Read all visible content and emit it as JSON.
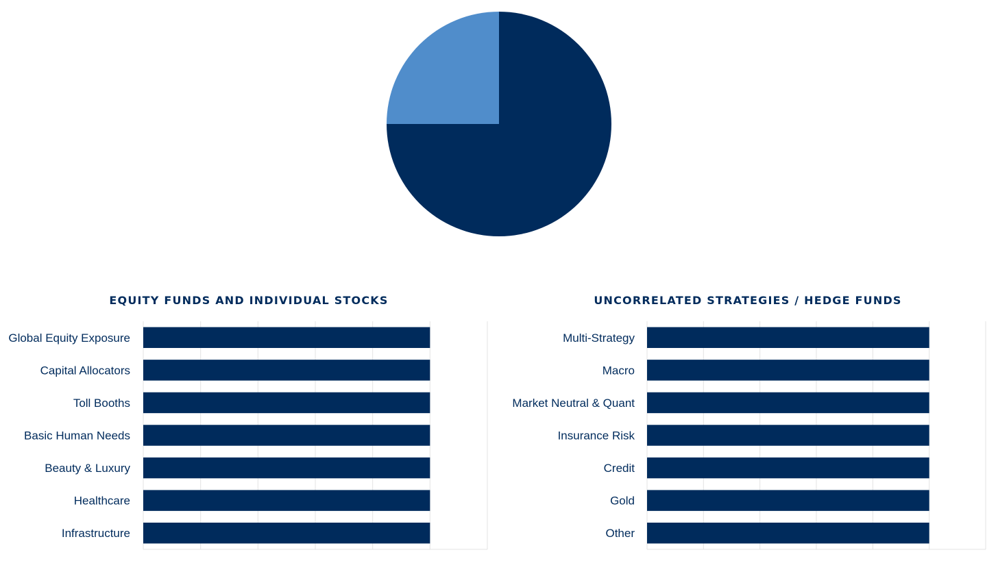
{
  "colors": {
    "dark": "#002B5C",
    "light": "#508DCB",
    "grid": "#E3E3E3",
    "text": "#002B5C"
  },
  "chart_data": [
    {
      "type": "pie",
      "title": "",
      "slices": [
        {
          "label": "",
          "value": 75,
          "color": "#002B5C"
        },
        {
          "label": "",
          "value": 25,
          "color": "#508DCB"
        }
      ]
    },
    {
      "type": "bar",
      "orientation": "horizontal",
      "title": "EQUITY FUNDS AND INDIVIDUAL STOCKS",
      "categories": [
        "Global Equity Exposure",
        "Capital Allocators",
        "Toll Booths",
        "Basic Human Needs",
        "Beauty & Luxury",
        "Healthcare",
        "Infrastructure"
      ],
      "values": [
        1,
        1,
        1,
        1,
        1,
        1,
        1
      ],
      "xlim": [
        0,
        1.2
      ],
      "grid": true,
      "xticks_visible": false
    },
    {
      "type": "bar",
      "orientation": "horizontal",
      "title": "UNCORRELATED STRATEGIES / HEDGE FUNDS",
      "categories": [
        "Multi-Strategy",
        "Macro",
        "Market Neutral & Quant",
        "Insurance Risk",
        "Credit",
        "Gold",
        "Other"
      ],
      "values": [
        1,
        1,
        1,
        1,
        1,
        1,
        1
      ],
      "xlim": [
        0,
        1.2
      ],
      "grid": true,
      "xticks_visible": false
    }
  ]
}
